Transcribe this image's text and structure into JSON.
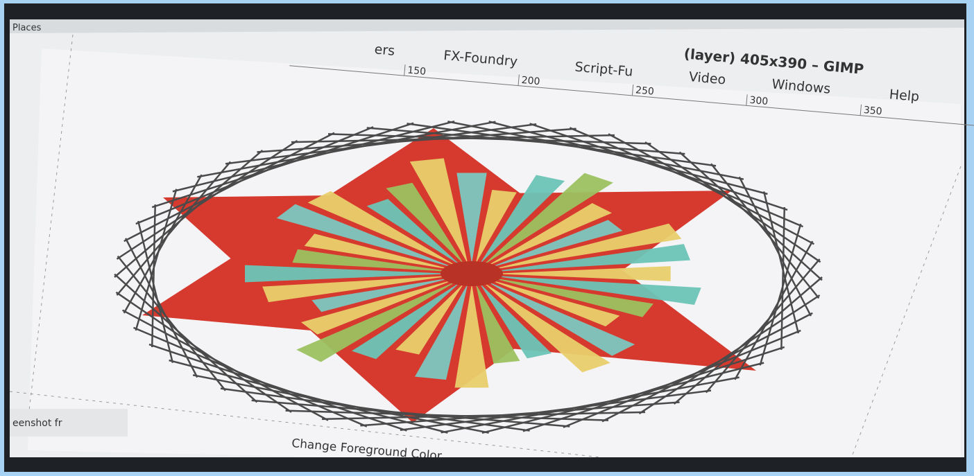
{
  "window": {
    "places": "Places",
    "title": "(layer) 405x390 – GIMP",
    "menu": [
      "ers",
      "FX-Foundry",
      "Script-Fu",
      "Video",
      "Windows",
      "Help"
    ]
  },
  "ruler": [
    "150",
    "200",
    "250",
    "300",
    "350"
  ],
  "status": {
    "tab": "eenshot fr",
    "message": "Change Foreground Color"
  }
}
